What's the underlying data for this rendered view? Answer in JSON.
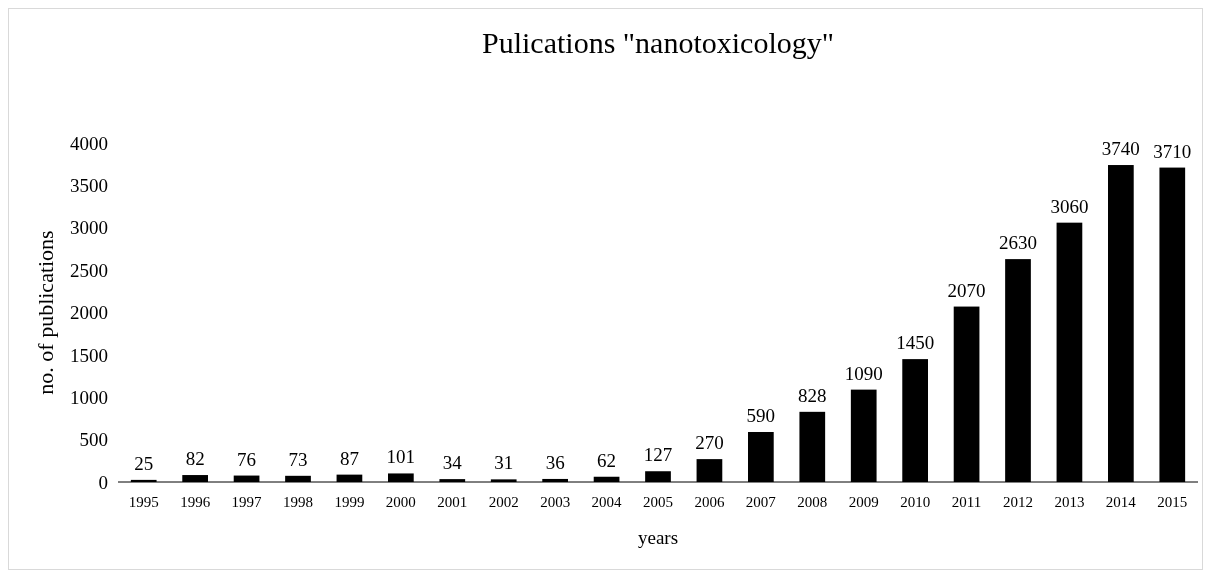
{
  "chart_data": {
    "type": "bar",
    "title": "Pulications \"nanotoxicology\"",
    "xlabel": "years",
    "ylabel": "no. of publications",
    "categories": [
      "1995",
      "1996",
      "1997",
      "1998",
      "1999",
      "2000",
      "2001",
      "2002",
      "2003",
      "2004",
      "2005",
      "2006",
      "2007",
      "2008",
      "2009",
      "2010",
      "2011",
      "2012",
      "2013",
      "2014",
      "2015"
    ],
    "values": [
      25,
      82,
      76,
      73,
      87,
      101,
      34,
      31,
      36,
      62,
      127,
      270,
      590,
      828,
      1090,
      1450,
      2070,
      2630,
      3060,
      3740,
      3710
    ],
    "color": "#000000",
    "ylim": [
      0,
      4000
    ],
    "yticks": [
      0,
      500,
      1000,
      1500,
      2000,
      2500,
      3000,
      3500,
      4000
    ],
    "grid": false,
    "data_labels": true
  }
}
